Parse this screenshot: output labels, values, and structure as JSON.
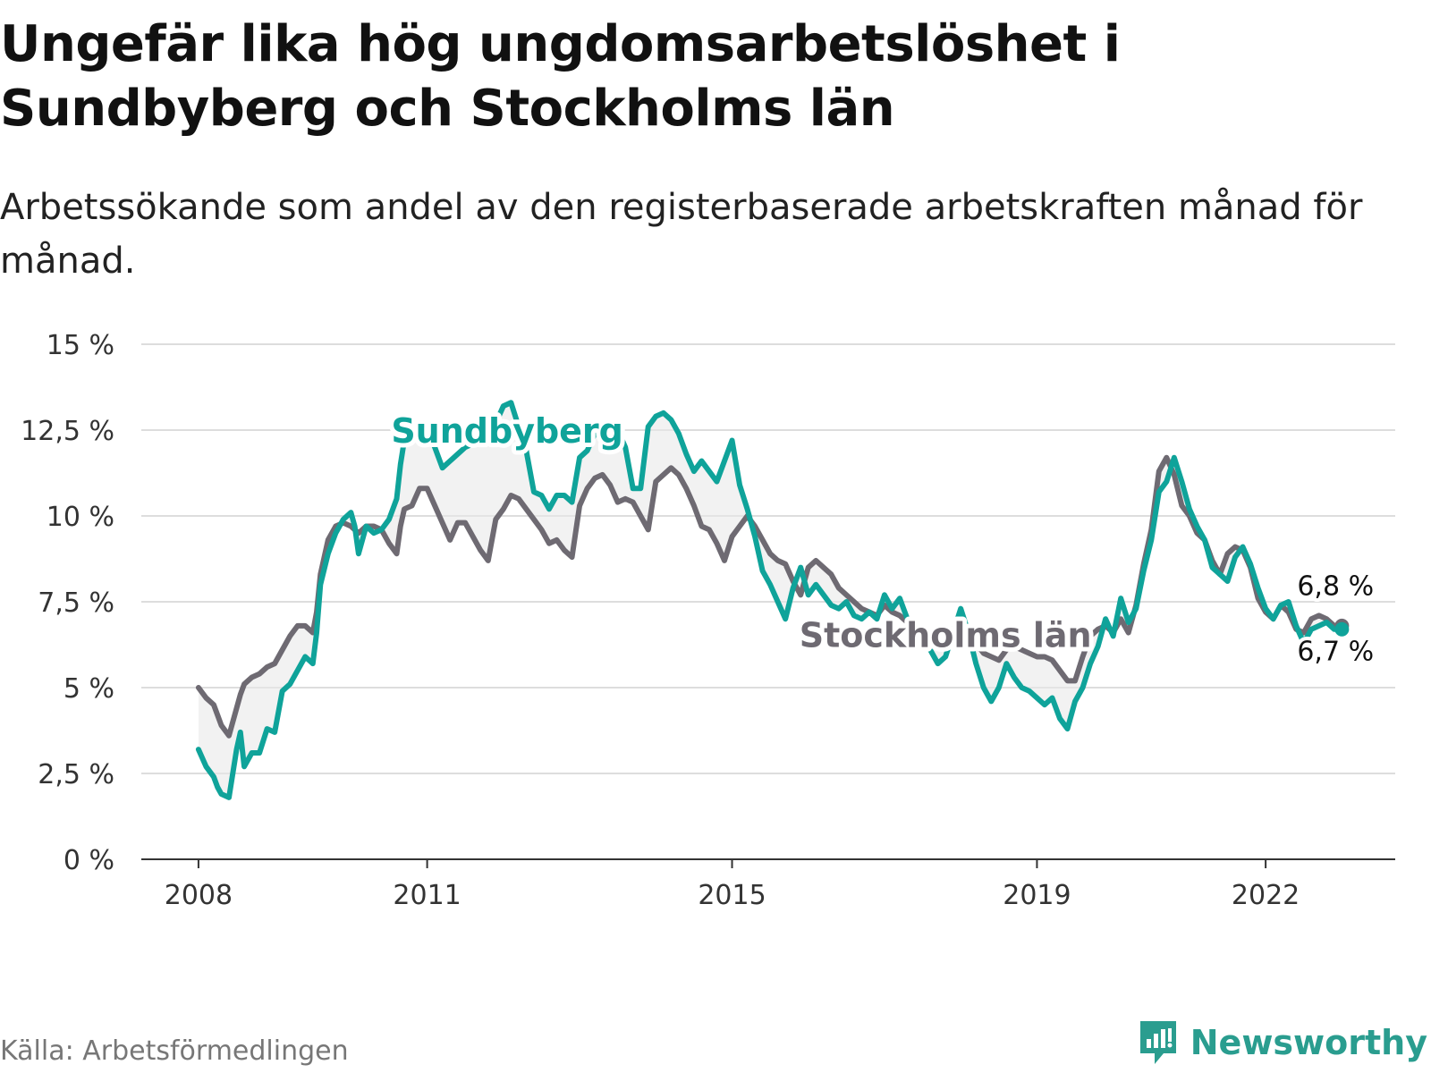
{
  "header": {
    "title": "Ungefär lika hög ungdomsarbetslöshet i Sundbyberg och Stockholms län",
    "subtitle": "Arbetssökande som andel av den registerbaserade arbetskraften månad för månad."
  },
  "footer": {
    "source": "Källa: Arbetsförmedlingen",
    "brand": "Newsworthy"
  },
  "colors": {
    "sundbyberg": "#0fa39a",
    "stockholm": "#6e6a72",
    "grid": "#dddddd",
    "axis": "#333333",
    "fill": "#e9e9e9"
  },
  "chart_data": {
    "type": "line",
    "title": "Ungefär lika hög ungdomsarbetslöshet i Sundbyberg och Stockholms län",
    "xlabel": "",
    "ylabel": "",
    "ylim": [
      0,
      15
    ],
    "xlim": [
      2007.25,
      2023.7
    ],
    "y_ticks": [
      0,
      2.5,
      5,
      7.5,
      10,
      12.5,
      15
    ],
    "y_tick_labels": [
      "0 %",
      "2,5 %",
      "5 %",
      "7,5 %",
      "10 %",
      "12,5 %",
      "15 %"
    ],
    "x_ticks": [
      2008,
      2011,
      2015,
      2019,
      2022
    ],
    "x_tick_labels": [
      "2008",
      "2011",
      "2015",
      "2019",
      "2022"
    ],
    "grid": true,
    "series": [
      {
        "name": "Sundbyberg",
        "label": "Sundbyberg",
        "end_label": "6,7 %",
        "x": [
          2008.0,
          2008.1,
          2008.2,
          2008.25,
          2008.3,
          2008.4,
          2008.5,
          2008.55,
          2008.6,
          2008.7,
          2008.8,
          2008.9,
          2009.0,
          2009.1,
          2009.2,
          2009.3,
          2009.4,
          2009.5,
          2009.55,
          2009.6,
          2009.7,
          2009.8,
          2009.9,
          2010.0,
          2010.05,
          2010.1,
          2010.2,
          2010.3,
          2010.4,
          2010.5,
          2010.6,
          2010.65,
          2010.7,
          2010.8,
          2010.9,
          2011.0,
          2011.1,
          2011.2,
          2011.3,
          2011.4,
          2011.5,
          2011.6,
          2011.7,
          2011.8,
          2011.9,
          2012.0,
          2012.1,
          2012.2,
          2012.3,
          2012.4,
          2012.5,
          2012.6,
          2012.7,
          2012.8,
          2012.9,
          2013.0,
          2013.1,
          2013.2,
          2013.3,
          2013.4,
          2013.5,
          2013.6,
          2013.7,
          2013.8,
          2013.9,
          2014.0,
          2014.1,
          2014.2,
          2014.3,
          2014.4,
          2014.5,
          2014.6,
          2014.7,
          2014.8,
          2014.9,
          2015.0,
          2015.1,
          2015.2,
          2015.3,
          2015.4,
          2015.5,
          2015.6,
          2015.7,
          2015.8,
          2015.9,
          2016.0,
          2016.1,
          2016.2,
          2016.3,
          2016.4,
          2016.5,
          2016.6,
          2016.7,
          2016.8,
          2016.9,
          2017.0,
          2017.1,
          2017.2,
          2017.3,
          2017.4,
          2017.5,
          2017.6,
          2017.7,
          2017.8,
          2017.9,
          2018.0,
          2018.1,
          2018.2,
          2018.3,
          2018.4,
          2018.5,
          2018.6,
          2018.7,
          2018.8,
          2018.9,
          2019.0,
          2019.1,
          2019.2,
          2019.3,
          2019.4,
          2019.5,
          2019.6,
          2019.7,
          2019.8,
          2019.9,
          2020.0,
          2020.1,
          2020.2,
          2020.3,
          2020.4,
          2020.5,
          2020.6,
          2020.7,
          2020.8,
          2020.9,
          2021.0,
          2021.1,
          2021.2,
          2021.3,
          2021.4,
          2021.5,
          2021.6,
          2021.7,
          2021.8,
          2021.9,
          2022.0,
          2022.1,
          2022.2,
          2022.3,
          2022.4,
          2022.5,
          2022.6,
          2022.7,
          2022.8,
          2022.9,
          2023.0
        ],
        "values": [
          3.2,
          2.7,
          2.4,
          2.1,
          1.9,
          1.8,
          3.2,
          3.7,
          2.7,
          3.1,
          3.1,
          3.8,
          3.7,
          4.9,
          5.1,
          5.5,
          5.9,
          5.7,
          6.6,
          8.0,
          8.9,
          9.5,
          9.9,
          10.1,
          9.7,
          8.9,
          9.7,
          9.5,
          9.6,
          9.9,
          10.5,
          11.5,
          12.2,
          12.6,
          12.4,
          12.6,
          12.0,
          11.4,
          11.6,
          11.8,
          12.0,
          12.1,
          12.5,
          12.3,
          12.7,
          13.2,
          13.3,
          12.6,
          11.9,
          10.7,
          10.6,
          10.2,
          10.6,
          10.6,
          10.4,
          11.7,
          11.9,
          12.4,
          12.5,
          12.3,
          12.5,
          12.0,
          10.8,
          10.8,
          12.6,
          12.9,
          13.0,
          12.8,
          12.4,
          11.8,
          11.3,
          11.6,
          11.3,
          11.0,
          11.6,
          12.2,
          10.9,
          10.2,
          9.4,
          8.4,
          8.0,
          7.5,
          7.0,
          7.9,
          8.5,
          7.7,
          8.0,
          7.7,
          7.4,
          7.3,
          7.5,
          7.1,
          7.0,
          7.2,
          7.0,
          7.7,
          7.3,
          7.6,
          7.0,
          6.8,
          6.4,
          6.1,
          5.7,
          5.9,
          6.6,
          7.3,
          6.6,
          5.7,
          5.0,
          4.6,
          5.0,
          5.7,
          5.3,
          5.0,
          4.9,
          4.7,
          4.5,
          4.7,
          4.1,
          3.8,
          4.6,
          5.0,
          5.7,
          6.2,
          7.0,
          6.5,
          7.6,
          6.9,
          7.3,
          8.4,
          9.3,
          10.7,
          11.0,
          11.7,
          11.0,
          10.2,
          9.7,
          9.3,
          8.5,
          8.3,
          8.1,
          8.8,
          9.1,
          8.6,
          7.9,
          7.3,
          7.0,
          7.4,
          7.5,
          6.8,
          6.3,
          6.7,
          6.8,
          6.9,
          6.7,
          6.7
        ]
      },
      {
        "name": "Stockholms län",
        "label": "Stockholms län",
        "end_label": "6,8 %",
        "x": [
          2008.0,
          2008.1,
          2008.2,
          2008.25,
          2008.3,
          2008.4,
          2008.5,
          2008.55,
          2008.6,
          2008.7,
          2008.8,
          2008.9,
          2009.0,
          2009.1,
          2009.2,
          2009.3,
          2009.4,
          2009.5,
          2009.55,
          2009.6,
          2009.7,
          2009.8,
          2009.9,
          2010.0,
          2010.05,
          2010.1,
          2010.2,
          2010.3,
          2010.4,
          2010.5,
          2010.6,
          2010.65,
          2010.7,
          2010.8,
          2010.9,
          2011.0,
          2011.1,
          2011.2,
          2011.3,
          2011.4,
          2011.5,
          2011.6,
          2011.7,
          2011.8,
          2011.9,
          2012.0,
          2012.1,
          2012.2,
          2012.3,
          2012.4,
          2012.5,
          2012.6,
          2012.7,
          2012.8,
          2012.9,
          2013.0,
          2013.1,
          2013.2,
          2013.3,
          2013.4,
          2013.5,
          2013.6,
          2013.7,
          2013.8,
          2013.9,
          2014.0,
          2014.1,
          2014.2,
          2014.3,
          2014.4,
          2014.5,
          2014.6,
          2014.7,
          2014.8,
          2014.9,
          2015.0,
          2015.1,
          2015.2,
          2015.3,
          2015.4,
          2015.5,
          2015.6,
          2015.7,
          2015.8,
          2015.9,
          2016.0,
          2016.1,
          2016.2,
          2016.3,
          2016.4,
          2016.5,
          2016.6,
          2016.7,
          2016.8,
          2016.9,
          2017.0,
          2017.1,
          2017.2,
          2017.3,
          2017.4,
          2017.5,
          2017.6,
          2017.7,
          2017.8,
          2017.9,
          2018.0,
          2018.1,
          2018.2,
          2018.3,
          2018.4,
          2018.5,
          2018.6,
          2018.7,
          2018.8,
          2018.9,
          2019.0,
          2019.1,
          2019.2,
          2019.3,
          2019.4,
          2019.5,
          2019.6,
          2019.7,
          2019.8,
          2019.9,
          2020.0,
          2020.1,
          2020.2,
          2020.3,
          2020.4,
          2020.5,
          2020.6,
          2020.7,
          2020.8,
          2020.9,
          2021.0,
          2021.1,
          2021.2,
          2021.3,
          2021.4,
          2021.5,
          2021.6,
          2021.7,
          2021.8,
          2021.9,
          2022.0,
          2022.1,
          2022.2,
          2022.3,
          2022.4,
          2022.5,
          2022.6,
          2022.7,
          2022.8,
          2022.9,
          2023.0
        ],
        "values": [
          5.0,
          4.7,
          4.5,
          4.2,
          3.9,
          3.6,
          4.4,
          4.8,
          5.1,
          5.3,
          5.4,
          5.6,
          5.7,
          6.1,
          6.5,
          6.8,
          6.8,
          6.6,
          7.2,
          8.3,
          9.3,
          9.7,
          9.8,
          9.7,
          9.6,
          9.5,
          9.7,
          9.7,
          9.6,
          9.2,
          8.9,
          9.7,
          10.2,
          10.3,
          10.8,
          10.8,
          10.3,
          9.8,
          9.3,
          9.8,
          9.8,
          9.4,
          9.0,
          8.7,
          9.9,
          10.2,
          10.6,
          10.5,
          10.2,
          9.9,
          9.6,
          9.2,
          9.3,
          9.0,
          8.8,
          10.3,
          10.8,
          11.1,
          11.2,
          10.9,
          10.4,
          10.5,
          10.4,
          10.0,
          9.6,
          11.0,
          11.2,
          11.4,
          11.2,
          10.8,
          10.3,
          9.7,
          9.6,
          9.2,
          8.7,
          9.4,
          9.7,
          10.0,
          9.7,
          9.3,
          8.9,
          8.7,
          8.6,
          8.1,
          7.7,
          8.5,
          8.7,
          8.5,
          8.3,
          7.9,
          7.7,
          7.5,
          7.3,
          7.2,
          7.1,
          7.4,
          7.2,
          7.1,
          6.9,
          6.8,
          6.6,
          6.4,
          6.3,
          6.3,
          6.6,
          6.5,
          6.6,
          6.3,
          6.0,
          5.9,
          5.8,
          6.1,
          6.2,
          6.1,
          6.0,
          5.9,
          5.9,
          5.8,
          5.5,
          5.2,
          5.2,
          5.9,
          6.5,
          6.7,
          6.8,
          6.6,
          7.0,
          6.6,
          7.4,
          8.6,
          9.6,
          11.3,
          11.7,
          11.2,
          10.3,
          10.0,
          9.5,
          9.3,
          8.7,
          8.3,
          8.9,
          9.1,
          9.0,
          8.5,
          7.6,
          7.2,
          7.0,
          7.4,
          7.2,
          6.7,
          6.6,
          7.0,
          7.1,
          7.0,
          6.8,
          6.8
        ]
      }
    ]
  }
}
